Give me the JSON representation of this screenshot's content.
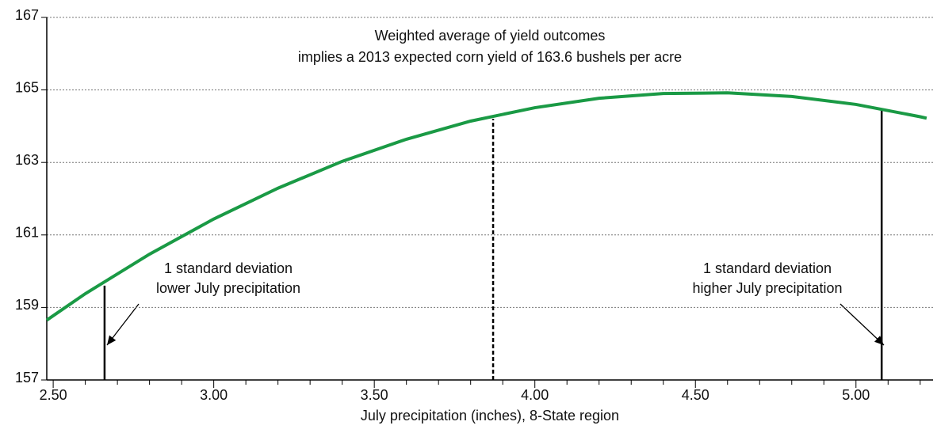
{
  "chart_data": {
    "type": "line",
    "x_label": "July precipitation (inches), 8-State region",
    "annotations": [
      "Weighted average of yield outcomes",
      "implies a 2013 expected corn yield of 163.6 bushels per acre",
      "1 standard deviation",
      "lower July precipitation",
      "1 standard deviation",
      "higher July precipitation"
    ],
    "x": [
      2.48,
      2.6,
      2.8,
      3.0,
      3.2,
      3.4,
      3.6,
      3.8,
      4.0,
      4.2,
      4.4,
      4.6,
      4.8,
      5.0,
      5.2,
      5.22
    ],
    "series": [
      {
        "color": "#1a9a45",
        "values": [
          158.65,
          159.38,
          160.47,
          161.44,
          162.29,
          163.03,
          163.64,
          164.14,
          164.51,
          164.77,
          164.9,
          164.92,
          164.82,
          164.6,
          164.26,
          164.22
        ]
      }
    ],
    "markers": [
      {
        "x": 2.66,
        "y": 159.6,
        "style": "solid"
      },
      {
        "x": 3.87,
        "y": 164.2,
        "style": "dashed"
      },
      {
        "x": 5.08,
        "y": 164.45,
        "style": "solid"
      }
    ],
    "xlim": [
      2.48,
      5.24
    ],
    "ylim": [
      157,
      167
    ],
    "xticks": [
      {
        "value": 2.5,
        "label": "2.50"
      },
      {
        "value": 3.0,
        "label": "3.00"
      },
      {
        "value": 3.5,
        "label": "3.50"
      },
      {
        "value": 4.0,
        "label": "4.00"
      },
      {
        "value": 4.5,
        "label": "4.50"
      },
      {
        "value": 5.0,
        "label": "5.00"
      }
    ],
    "xminorticks": [
      2.6,
      2.7,
      2.8,
      2.9,
      3.1,
      3.2,
      3.3,
      3.4,
      3.6,
      3.7,
      3.8,
      3.9,
      4.1,
      4.2,
      4.3,
      4.4,
      4.6,
      4.7,
      4.8,
      4.9,
      5.1,
      5.2
    ],
    "yticks": [
      157,
      159,
      161,
      163,
      165,
      167
    ],
    "grid": true
  }
}
